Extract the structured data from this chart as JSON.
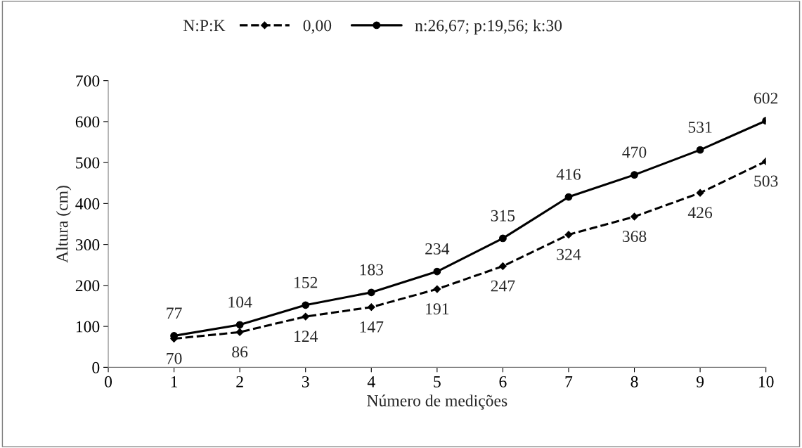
{
  "chart_data": {
    "type": "line",
    "xlabel": "Número de medições",
    "ylabel": "Altura (cm)",
    "legend_title": "N:P:K",
    "x": [
      1,
      2,
      3,
      4,
      5,
      6,
      7,
      8,
      9,
      10
    ],
    "series": [
      {
        "name": "0,00",
        "color": "#000000",
        "marker": "diamond",
        "line_style": "dashed",
        "values": [
          70,
          86,
          124,
          147,
          191,
          247,
          324,
          368,
          426,
          503
        ]
      },
      {
        "name": "n:26,67; p:19,56; k:30",
        "color": "#000000",
        "marker": "circle",
        "line_style": "solid",
        "values": [
          77,
          104,
          152,
          183,
          234,
          315,
          416,
          470,
          531,
          602
        ]
      }
    ],
    "xlim": [
      0,
      10
    ],
    "xticks": [
      0,
      1,
      2,
      3,
      4,
      5,
      6,
      7,
      8,
      9,
      10
    ],
    "ylim": [
      0,
      700
    ],
    "yticks": [
      0,
      100,
      200,
      300,
      400,
      500,
      600,
      700
    ],
    "grid": false,
    "legend": "top",
    "data_labels": true
  }
}
